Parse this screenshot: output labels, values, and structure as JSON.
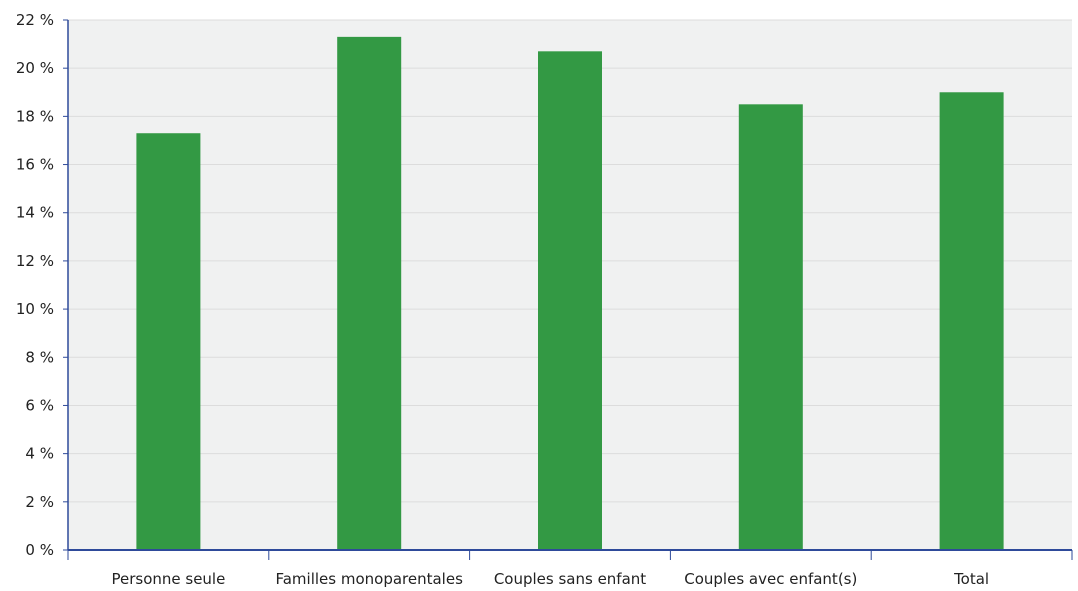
{
  "chart_data": {
    "type": "bar",
    "categories": [
      "Personne seule",
      "Familles monoparentales",
      "Couples sans enfant",
      "Couples avec enfant(s)",
      "Total"
    ],
    "values": [
      17.3,
      21.3,
      20.7,
      18.5,
      19.0
    ],
    "title": "",
    "xlabel": "",
    "ylabel": "",
    "ylim": [
      0,
      22
    ],
    "yticks": [
      "0 %",
      "2 %",
      "4 %",
      "6 %",
      "8 %",
      "10 %",
      "12 %",
      "14 %",
      "16 %",
      "18 %",
      "20 %",
      "22 %"
    ],
    "grid": true,
    "legend": "none",
    "colors": {
      "bar": "#339944",
      "plot_background": "#f0f1f1",
      "axis": "#2e4a9a",
      "grid": "#dcdcdc"
    }
  }
}
